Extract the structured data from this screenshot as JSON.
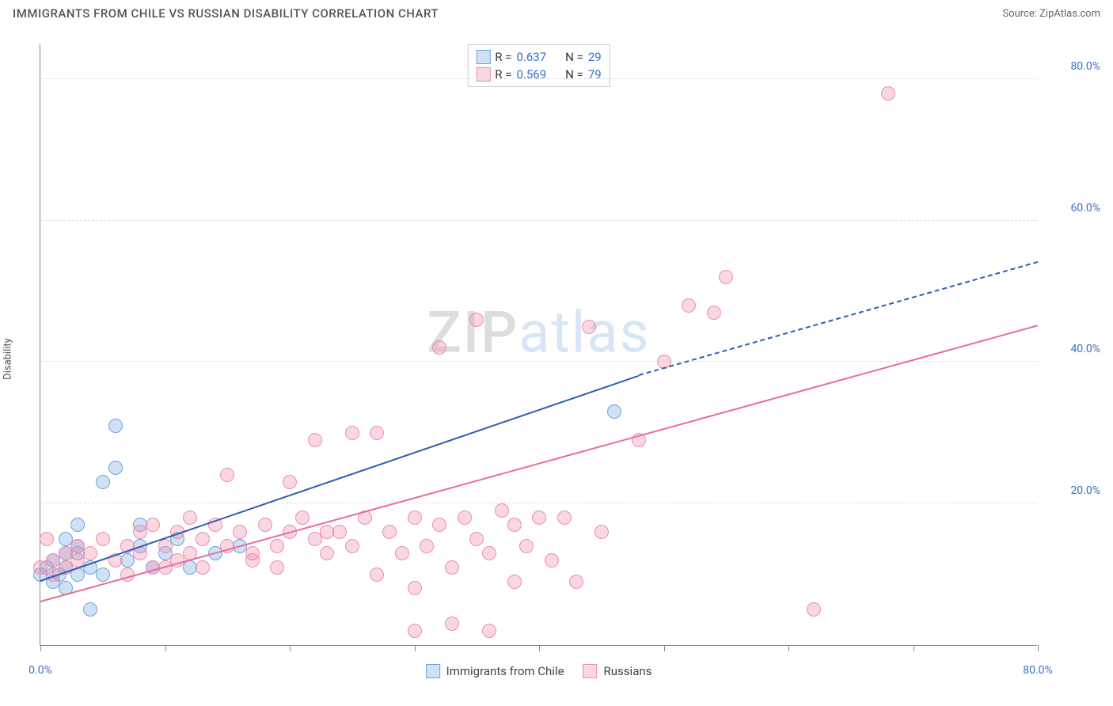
{
  "header": {
    "title": "IMMIGRANTS FROM CHILE VS RUSSIAN DISABILITY CORRELATION CHART",
    "source": "Source: ZipAtlas.com"
  },
  "chart": {
    "type": "scatter",
    "y_label": "Disability",
    "background_color": "#ffffff",
    "grid_color": "#dddddd",
    "axis_color": "#888888",
    "tick_label_color": "#3b6fc9",
    "xlim": [
      0,
      80
    ],
    "ylim": [
      0,
      85
    ],
    "x_ticks": [
      0,
      10,
      20,
      30,
      40,
      50,
      60,
      70,
      80
    ],
    "y_ticks": [
      20,
      40,
      60,
      80
    ],
    "x_tick_labels": {
      "0": "0.0%",
      "80": "80.0%"
    },
    "y_tick_labels": {
      "20": "20.0%",
      "40": "40.0%",
      "60": "60.0%",
      "80": "80.0%"
    },
    "watermark": {
      "z": "ZIP",
      "rest": "atlas"
    },
    "series": [
      {
        "name": "Immigrants from Chile",
        "color_fill": "rgba(120,170,230,0.35)",
        "color_stroke": "#6fa3db",
        "marker_radius": 9,
        "R": "0.637",
        "N": "29",
        "trend": {
          "x1": 0,
          "y1": 9,
          "x2": 48,
          "y2": 38,
          "dash_x2": 80,
          "dash_y2": 54,
          "color": "#2d5fb0",
          "width": 2.5
        },
        "points": [
          [
            0,
            10
          ],
          [
            0.5,
            11
          ],
          [
            1,
            12
          ],
          [
            1,
            9
          ],
          [
            1.5,
            10
          ],
          [
            2,
            11
          ],
          [
            2,
            13
          ],
          [
            2,
            8
          ],
          [
            3,
            14
          ],
          [
            3,
            10
          ],
          [
            3,
            17
          ],
          [
            4,
            11
          ],
          [
            5,
            23
          ],
          [
            5,
            10
          ],
          [
            6,
            31
          ],
          [
            6,
            25
          ],
          [
            7,
            12
          ],
          [
            8,
            14
          ],
          [
            8,
            17
          ],
          [
            9,
            11
          ],
          [
            10,
            13
          ],
          [
            11,
            15
          ],
          [
            12,
            11
          ],
          [
            14,
            13
          ],
          [
            16,
            14
          ],
          [
            4,
            5
          ],
          [
            2,
            15
          ],
          [
            3,
            13
          ],
          [
            46,
            33
          ]
        ]
      },
      {
        "name": "Russians",
        "color_fill": "rgba(240,140,170,0.35)",
        "color_stroke": "#e88fb0",
        "marker_radius": 9,
        "R": "0.569",
        "N": "79",
        "trend": {
          "x1": 0,
          "y1": 6,
          "x2": 80,
          "y2": 45,
          "color": "#e96d97",
          "width": 2.5
        },
        "points": [
          [
            0,
            11
          ],
          [
            0.5,
            15
          ],
          [
            1,
            12
          ],
          [
            1,
            10
          ],
          [
            2,
            13
          ],
          [
            2,
            11
          ],
          [
            3,
            14
          ],
          [
            3,
            12
          ],
          [
            4,
            13
          ],
          [
            5,
            15
          ],
          [
            6,
            12
          ],
          [
            7,
            14
          ],
          [
            8,
            16
          ],
          [
            8,
            13
          ],
          [
            9,
            17
          ],
          [
            10,
            14
          ],
          [
            10,
            11
          ],
          [
            11,
            16
          ],
          [
            12,
            13
          ],
          [
            12,
            18
          ],
          [
            13,
            15
          ],
          [
            14,
            17
          ],
          [
            15,
            14
          ],
          [
            15,
            24
          ],
          [
            16,
            16
          ],
          [
            17,
            13
          ],
          [
            18,
            17
          ],
          [
            19,
            14
          ],
          [
            20,
            16
          ],
          [
            20,
            23
          ],
          [
            21,
            18
          ],
          [
            22,
            15
          ],
          [
            22,
            29
          ],
          [
            23,
            13
          ],
          [
            24,
            16
          ],
          [
            25,
            14
          ],
          [
            25,
            30
          ],
          [
            26,
            18
          ],
          [
            27,
            10
          ],
          [
            27,
            30
          ],
          [
            28,
            16
          ],
          [
            29,
            13
          ],
          [
            30,
            18
          ],
          [
            30,
            8
          ],
          [
            30,
            2
          ],
          [
            31,
            14
          ],
          [
            32,
            17
          ],
          [
            32,
            42
          ],
          [
            33,
            11
          ],
          [
            33,
            3
          ],
          [
            34,
            18
          ],
          [
            35,
            15
          ],
          [
            35,
            46
          ],
          [
            36,
            13
          ],
          [
            36,
            2
          ],
          [
            37,
            19
          ],
          [
            38,
            9
          ],
          [
            38,
            17
          ],
          [
            39,
            14
          ],
          [
            40,
            18
          ],
          [
            41,
            12
          ],
          [
            42,
            18
          ],
          [
            43,
            9
          ],
          [
            44,
            45
          ],
          [
            45,
            16
          ],
          [
            48,
            29
          ],
          [
            50,
            40
          ],
          [
            52,
            48
          ],
          [
            54,
            47
          ],
          [
            55,
            52
          ],
          [
            62,
            5
          ],
          [
            68,
            78
          ],
          [
            7,
            10
          ],
          [
            9,
            11
          ],
          [
            11,
            12
          ],
          [
            13,
            11
          ],
          [
            17,
            12
          ],
          [
            19,
            11
          ],
          [
            23,
            16
          ]
        ]
      }
    ],
    "legend_top": {
      "R_label": "R =",
      "N_label": "N ="
    },
    "legend_bottom": [
      {
        "swatch_fill": "rgba(120,170,230,0.35)",
        "swatch_stroke": "#6fa3db",
        "label": "Immigrants from Chile"
      },
      {
        "swatch_fill": "rgba(240,140,170,0.35)",
        "swatch_stroke": "#e88fb0",
        "label": "Russians"
      }
    ]
  }
}
